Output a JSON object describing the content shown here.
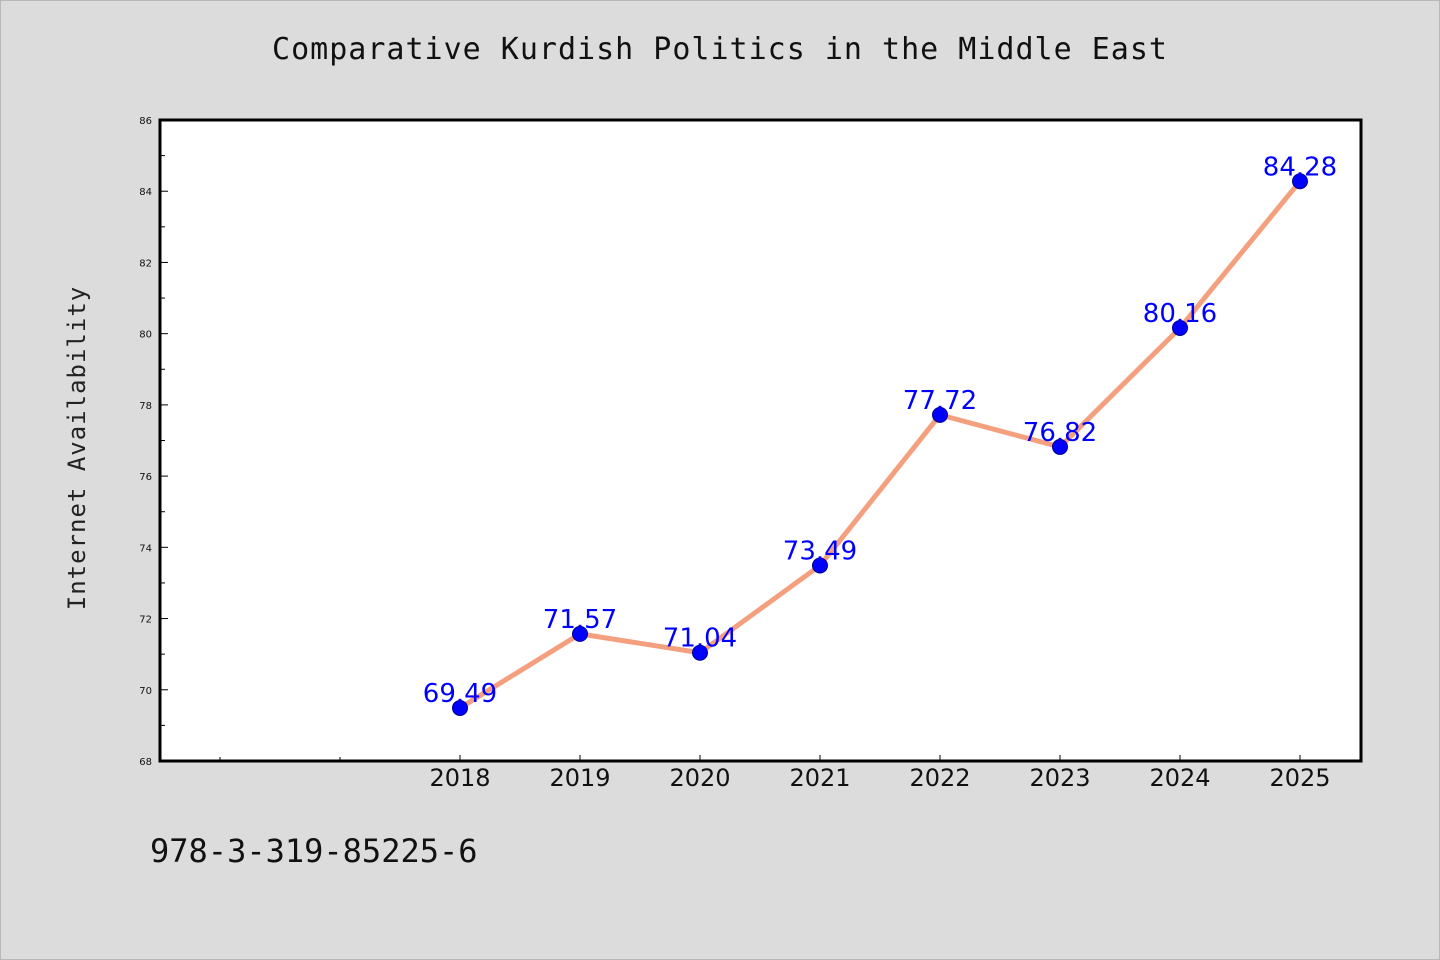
{
  "chart_data": {
    "type": "line",
    "title": "Comparative Kurdish Politics in the Middle East",
    "ylabel": "Internet Availability",
    "xlabel": "",
    "x": [
      "2018",
      "2019",
      "2020",
      "2021",
      "2022",
      "2023",
      "2024",
      "2025"
    ],
    "series": [
      {
        "values": [
          69.49,
          71.57,
          71.04,
          73.49,
          77.72,
          76.82,
          80.16,
          84.28
        ],
        "data_labels": [
          "69.49",
          "71.57",
          "71.04",
          "73.49",
          "77.72",
          "76.82",
          "80.16",
          "84.28"
        ]
      }
    ],
    "ylim": [
      68,
      86
    ],
    "yticks": [
      "68",
      "70",
      "72",
      "74",
      "76",
      "78",
      "80",
      "82",
      "84",
      "86"
    ],
    "grid": false,
    "line_color": "#f4a07f",
    "marker_color": "#0000ff",
    "label_color": "#0000ff",
    "background_color": "#dcdcdc",
    "plot_background": "#ffffff"
  },
  "footer": {
    "code": "978-3-319-85225-6"
  }
}
